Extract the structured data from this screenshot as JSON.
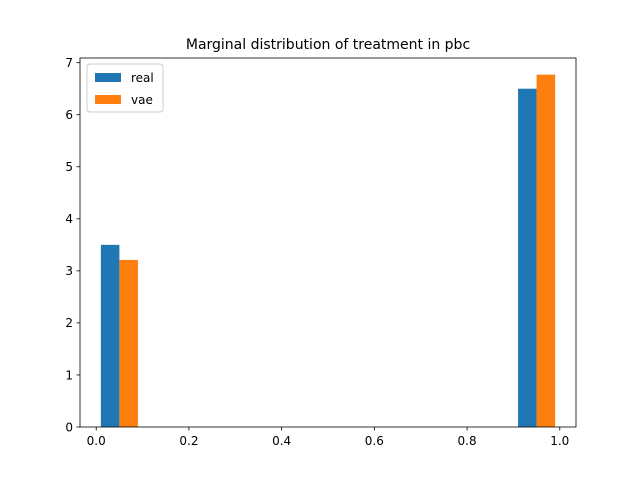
{
  "chart_data": {
    "type": "bar",
    "title": "Marginal distribution of treatment in pbc",
    "xlabel": "",
    "ylabel": "",
    "xlim": [
      -0.035,
      1.035
    ],
    "ylim": [
      0,
      7.09
    ],
    "x_ticks": [
      0.0,
      0.2,
      0.4,
      0.6,
      0.8,
      1.0
    ],
    "x_tick_labels": [
      "0.0",
      "0.2",
      "0.4",
      "0.6",
      "0.8",
      "1.0"
    ],
    "y_ticks": [
      0,
      1,
      2,
      3,
      4,
      5,
      6,
      7
    ],
    "y_tick_labels": [
      "0",
      "1",
      "2",
      "3",
      "4",
      "5",
      "6",
      "7"
    ],
    "bin_width": 0.04,
    "series": [
      {
        "name": "real",
        "color": "#1f77b4",
        "bars": [
          {
            "x_start": 0.01,
            "value": 3.5
          },
          {
            "x_start": 0.91,
            "value": 6.5
          }
        ]
      },
      {
        "name": "vae",
        "color": "#ff7f0e",
        "bars": [
          {
            "x_start": 0.05,
            "value": 3.21
          },
          {
            "x_start": 0.95,
            "value": 6.77
          }
        ]
      }
    ],
    "legend": {
      "position": "upper-left"
    },
    "grid": false
  }
}
